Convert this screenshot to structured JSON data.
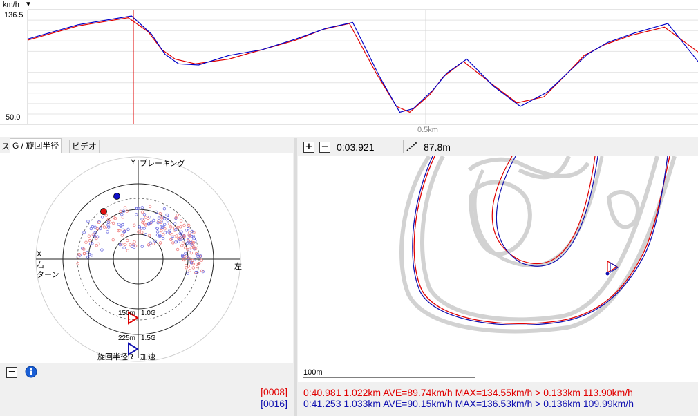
{
  "speed_chart": {
    "unit_label": "km/h",
    "unit_arrow": "▼",
    "y_max_label": "136.5",
    "y_min_label": "50.0",
    "x_label": "0.5km",
    "red_color": "#e00000",
    "blue_color": "#0000c8"
  },
  "chart_data": {
    "type": "line",
    "title": "",
    "ylabel": "km/h",
    "xlabel": "0.5km",
    "ylim": [
      50.0,
      136.5
    ],
    "series": [
      {
        "name": "[0008]",
        "color": "#e00000",
        "x": [
          0.0,
          0.15,
          0.3,
          0.36,
          0.4,
          0.44,
          0.5,
          0.6,
          0.7,
          0.8,
          0.88,
          0.96,
          1.04,
          1.1,
          1.14,
          1.2,
          1.24,
          1.3,
          1.38,
          1.46,
          1.54,
          1.6,
          1.66,
          1.72,
          1.8,
          1.9,
          2.0
        ],
        "values": [
          116.0,
          128.0,
          135.0,
          123.0,
          108.0,
          100.0,
          96.0,
          100.0,
          108.0,
          116.0,
          125.0,
          130.0,
          88.0,
          60.0,
          55.0,
          70.0,
          85.0,
          98.0,
          80.0,
          63.0,
          68.0,
          85.0,
          103.0,
          112.0,
          120.0,
          127.0,
          106.0
        ]
      },
      {
        "name": "[0016]",
        "color": "#0000c8",
        "x": [
          0.0,
          0.15,
          0.31,
          0.37,
          0.41,
          0.45,
          0.51,
          0.6,
          0.7,
          0.8,
          0.89,
          0.97,
          1.05,
          1.11,
          1.15,
          1.21,
          1.25,
          1.31,
          1.39,
          1.47,
          1.55,
          1.61,
          1.67,
          1.73,
          1.81,
          1.91,
          2.0
        ],
        "values": [
          117.0,
          129.0,
          136.5,
          121.0,
          104.0,
          96.0,
          95.0,
          103.0,
          108.0,
          117.0,
          126.0,
          131.0,
          85.0,
          55.0,
          58.0,
          74.0,
          88.0,
          100.0,
          77.0,
          60.0,
          72.0,
          88.0,
          104.0,
          114.0,
          122.0,
          130.0,
          98.0
        ]
      }
    ],
    "grid": true
  },
  "tabs": [
    "ス",
    "G / 旋回半径",
    "ビデオ"
  ],
  "g_plot": {
    "y_axis_label": "Y",
    "braking_label": "ブレーキング",
    "x_axis_label": "X",
    "right_turn_label": "右\nターン",
    "left_label": "左",
    "ring1_radius": "150m",
    "ring1_g": "1.0G",
    "ring2_radius": "225m",
    "ring2_g": "1.5G",
    "radius_label": "旋回半径R",
    "accel_label": "加速"
  },
  "g_toolbar": {
    "minus_icon": "minus-icon",
    "info_icon": "info-icon"
  },
  "legend": {
    "lap_red": "[0008]",
    "lap_blue": "[0016]"
  },
  "map_toolbar": {
    "time": "0:03.921",
    "distance": "87.8m",
    "zoom_in_icon": "zoom-in-icon",
    "zoom_out_icon": "zoom-out-icon",
    "measure_icon": "measure-icon"
  },
  "map": {
    "scale_label": "100m"
  },
  "lap_info": {
    "red": "0:40.981 1.022km AVE=89.74km/h MAX=134.55km/h > 0.133km 113.90km/h",
    "blue": "0:41.253 1.033km AVE=90.15km/h MAX=136.53km/h > 0.136km 109.99km/h"
  }
}
